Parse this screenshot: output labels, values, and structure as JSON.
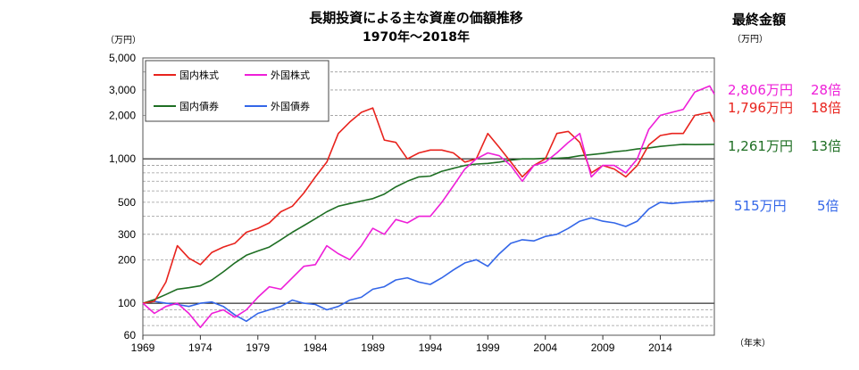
{
  "chart_data": {
    "type": "line",
    "title": "長期投資による主な資産の価額推移",
    "subtitle": "1970年～2018年",
    "y_unit": "（万円）",
    "x_unit": "（年末）",
    "y_scale": "log",
    "ylim": [
      60,
      5000
    ],
    "xlim": [
      1969,
      2018.7
    ],
    "y_ticks": [
      {
        "v": 60,
        "label": "60"
      },
      {
        "v": 100,
        "label": "100"
      },
      {
        "v": 200,
        "label": "200"
      },
      {
        "v": 300,
        "label": "300"
      },
      {
        "v": 500,
        "label": "500"
      },
      {
        "v": 1000,
        "label": "1,000"
      },
      {
        "v": 2000,
        "label": "2,000"
      },
      {
        "v": 3000,
        "label": "3,000"
      },
      {
        "v": 5000,
        "label": "5,000"
      }
    ],
    "x_ticks": [
      {
        "v": 1969,
        "label": "1969"
      },
      {
        "v": 1974,
        "label": "1974"
      },
      {
        "v": 1979,
        "label": "1979"
      },
      {
        "v": 1984,
        "label": "1984"
      },
      {
        "v": 1989,
        "label": "1989"
      },
      {
        "v": 1994,
        "label": "1994"
      },
      {
        "v": 1999,
        "label": "1999"
      },
      {
        "v": 2004,
        "label": "2004"
      },
      {
        "v": 2009,
        "label": "2009"
      },
      {
        "v": 2014,
        "label": "2014"
      }
    ],
    "grid": true,
    "legend_position": "top-left",
    "series": [
      {
        "name": "国内株式",
        "color": "#e8231d",
        "points": [
          [
            1969,
            100
          ],
          [
            1970,
            103
          ],
          [
            1971,
            140
          ],
          [
            1972,
            250
          ],
          [
            1973,
            205
          ],
          [
            1974,
            185
          ],
          [
            1975,
            225
          ],
          [
            1976,
            245
          ],
          [
            1977,
            260
          ],
          [
            1978,
            310
          ],
          [
            1979,
            330
          ],
          [
            1980,
            360
          ],
          [
            1981,
            430
          ],
          [
            1982,
            470
          ],
          [
            1983,
            580
          ],
          [
            1984,
            750
          ],
          [
            1985,
            950
          ],
          [
            1986,
            1500
          ],
          [
            1987,
            1800
          ],
          [
            1988,
            2100
          ],
          [
            1989,
            2250
          ],
          [
            1990,
            1350
          ],
          [
            1991,
            1300
          ],
          [
            1992,
            1000
          ],
          [
            1993,
            1100
          ],
          [
            1994,
            1150
          ],
          [
            1995,
            1150
          ],
          [
            1996,
            1100
          ],
          [
            1997,
            950
          ],
          [
            1998,
            1000
          ],
          [
            1999,
            1500
          ],
          [
            2000,
            1200
          ],
          [
            2001,
            950
          ],
          [
            2002,
            750
          ],
          [
            2003,
            900
          ],
          [
            2004,
            1000
          ],
          [
            2005,
            1500
          ],
          [
            2006,
            1550
          ],
          [
            2007,
            1300
          ],
          [
            2008,
            800
          ],
          [
            2009,
            900
          ],
          [
            2010,
            850
          ],
          [
            2011,
            750
          ],
          [
            2012,
            900
          ],
          [
            2013,
            1250
          ],
          [
            2014,
            1450
          ],
          [
            2015,
            1500
          ],
          [
            2016,
            1500
          ],
          [
            2017,
            2000
          ],
          [
            2018.3,
            2100
          ],
          [
            2018.7,
            1796
          ]
        ]
      },
      {
        "name": "外国株式",
        "color": "#ee1fd8",
        "points": [
          [
            1969,
            100
          ],
          [
            1970,
            85
          ],
          [
            1971,
            95
          ],
          [
            1972,
            100
          ],
          [
            1973,
            85
          ],
          [
            1974,
            68
          ],
          [
            1975,
            85
          ],
          [
            1976,
            90
          ],
          [
            1977,
            80
          ],
          [
            1978,
            90
          ],
          [
            1979,
            110
          ],
          [
            1980,
            130
          ],
          [
            1981,
            125
          ],
          [
            1982,
            150
          ],
          [
            1983,
            180
          ],
          [
            1984,
            185
          ],
          [
            1985,
            250
          ],
          [
            1986,
            220
          ],
          [
            1987,
            200
          ],
          [
            1988,
            250
          ],
          [
            1989,
            330
          ],
          [
            1990,
            300
          ],
          [
            1991,
            380
          ],
          [
            1992,
            360
          ],
          [
            1993,
            400
          ],
          [
            1994,
            400
          ],
          [
            1995,
            500
          ],
          [
            1996,
            650
          ],
          [
            1997,
            850
          ],
          [
            1998,
            1000
          ],
          [
            1999,
            1100
          ],
          [
            2000,
            1050
          ],
          [
            2001,
            900
          ],
          [
            2002,
            700
          ],
          [
            2003,
            900
          ],
          [
            2004,
            950
          ],
          [
            2005,
            1100
          ],
          [
            2006,
            1300
          ],
          [
            2007,
            1500
          ],
          [
            2008,
            750
          ],
          [
            2009,
            900
          ],
          [
            2010,
            900
          ],
          [
            2011,
            800
          ],
          [
            2012,
            1000
          ],
          [
            2013,
            1600
          ],
          [
            2014,
            2000
          ],
          [
            2015,
            2100
          ],
          [
            2016,
            2200
          ],
          [
            2017,
            2900
          ],
          [
            2018.3,
            3200
          ],
          [
            2018.7,
            2806
          ]
        ]
      },
      {
        "name": "国内債券",
        "color": "#1e6e23",
        "points": [
          [
            1969,
            100
          ],
          [
            1970,
            106
          ],
          [
            1971,
            115
          ],
          [
            1972,
            125
          ],
          [
            1973,
            128
          ],
          [
            1974,
            132
          ],
          [
            1975,
            145
          ],
          [
            1976,
            165
          ],
          [
            1977,
            190
          ],
          [
            1978,
            215
          ],
          [
            1979,
            230
          ],
          [
            1980,
            245
          ],
          [
            1981,
            275
          ],
          [
            1982,
            310
          ],
          [
            1983,
            345
          ],
          [
            1984,
            385
          ],
          [
            1985,
            430
          ],
          [
            1986,
            470
          ],
          [
            1987,
            490
          ],
          [
            1988,
            510
          ],
          [
            1989,
            530
          ],
          [
            1990,
            570
          ],
          [
            1991,
            640
          ],
          [
            1992,
            700
          ],
          [
            1993,
            750
          ],
          [
            1994,
            760
          ],
          [
            1995,
            820
          ],
          [
            1996,
            860
          ],
          [
            1997,
            900
          ],
          [
            1998,
            920
          ],
          [
            1999,
            930
          ],
          [
            2000,
            950
          ],
          [
            2001,
            980
          ],
          [
            2002,
            1000
          ],
          [
            2003,
            1000
          ],
          [
            2004,
            1010
          ],
          [
            2005,
            1010
          ],
          [
            2006,
            1020
          ],
          [
            2007,
            1050
          ],
          [
            2008,
            1070
          ],
          [
            2009,
            1090
          ],
          [
            2010,
            1120
          ],
          [
            2011,
            1140
          ],
          [
            2012,
            1170
          ],
          [
            2013,
            1190
          ],
          [
            2014,
            1220
          ],
          [
            2015,
            1240
          ],
          [
            2016,
            1260
          ],
          [
            2017,
            1255
          ],
          [
            2018.7,
            1261
          ]
        ]
      },
      {
        "name": "外国債券",
        "color": "#3366e8",
        "points": [
          [
            1969,
            100
          ],
          [
            1970,
            103
          ],
          [
            1971,
            100
          ],
          [
            1972,
            98
          ],
          [
            1973,
            95
          ],
          [
            1974,
            100
          ],
          [
            1975,
            102
          ],
          [
            1976,
            95
          ],
          [
            1977,
            83
          ],
          [
            1978,
            75
          ],
          [
            1979,
            85
          ],
          [
            1980,
            90
          ],
          [
            1981,
            95
          ],
          [
            1982,
            105
          ],
          [
            1983,
            100
          ],
          [
            1984,
            98
          ],
          [
            1985,
            90
          ],
          [
            1986,
            95
          ],
          [
            1987,
            105
          ],
          [
            1988,
            110
          ],
          [
            1989,
            125
          ],
          [
            1990,
            130
          ],
          [
            1991,
            145
          ],
          [
            1992,
            150
          ],
          [
            1993,
            140
          ],
          [
            1994,
            135
          ],
          [
            1995,
            150
          ],
          [
            1996,
            170
          ],
          [
            1997,
            190
          ],
          [
            1998,
            200
          ],
          [
            1999,
            180
          ],
          [
            2000,
            220
          ],
          [
            2001,
            260
          ],
          [
            2002,
            275
          ],
          [
            2003,
            270
          ],
          [
            2004,
            290
          ],
          [
            2005,
            300
          ],
          [
            2006,
            330
          ],
          [
            2007,
            370
          ],
          [
            2008,
            390
          ],
          [
            2009,
            370
          ],
          [
            2010,
            360
          ],
          [
            2011,
            340
          ],
          [
            2012,
            370
          ],
          [
            2013,
            450
          ],
          [
            2014,
            500
          ],
          [
            2015,
            490
          ],
          [
            2016,
            500
          ],
          [
            2017,
            505
          ],
          [
            2018.7,
            515
          ]
        ]
      }
    ],
    "summary_header": "最終金額",
    "summary_unit": "（万円）",
    "summary": [
      {
        "value": "2,806万円",
        "multiple": "28倍",
        "color": "#ee1fd8"
      },
      {
        "value": "1,796万円",
        "multiple": "18倍",
        "color": "#e8231d"
      },
      {
        "value": "1,261万円",
        "multiple": "13倍",
        "color": "#1e6e23"
      },
      {
        "value": "515万円",
        "multiple": "5倍",
        "color": "#3366e8"
      }
    ]
  }
}
